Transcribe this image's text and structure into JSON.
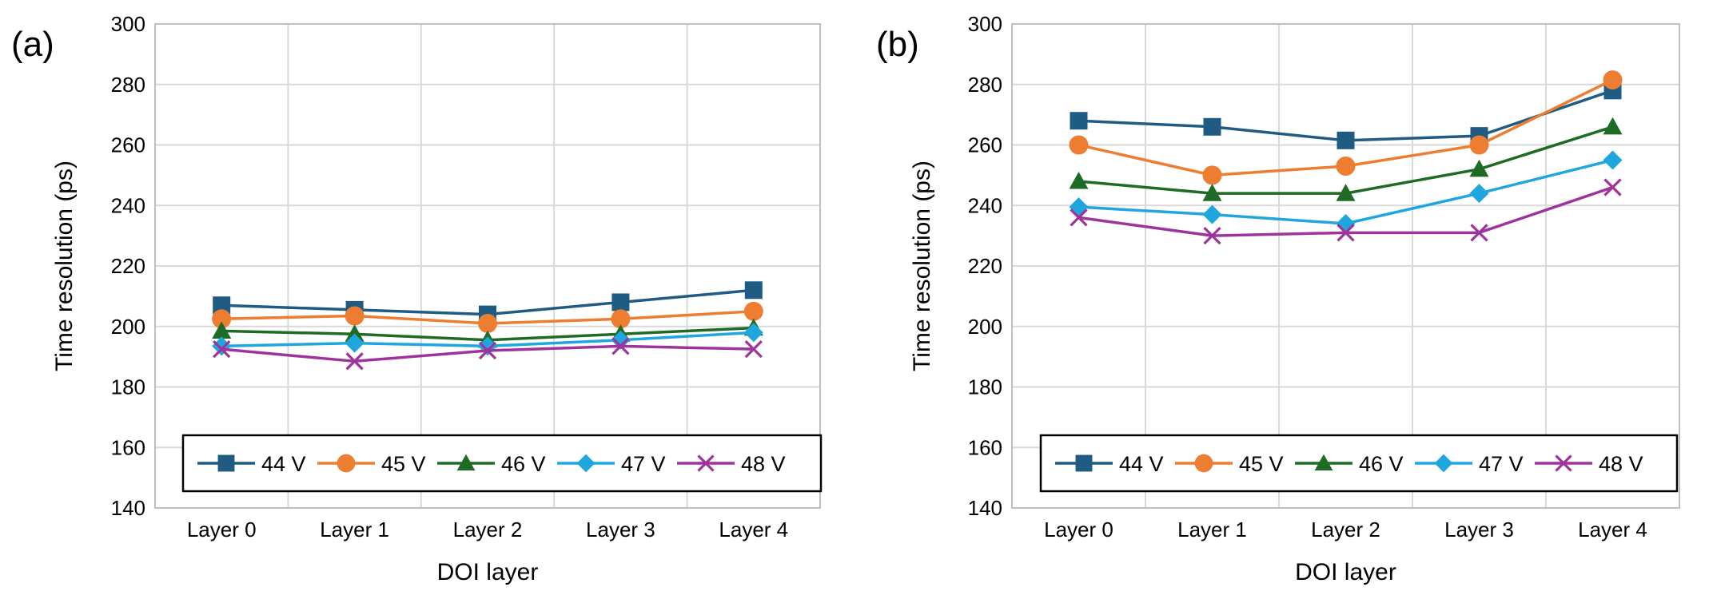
{
  "figure": {
    "colors": {
      "44 V": "#1f5b82",
      "45 V": "#ed7d31",
      "46 V": "#1e6b25",
      "47 V": "#1fa6df",
      "48 V": "#9e339b"
    },
    "markers": {
      "44 V": "square",
      "45 V": "circle",
      "46 V": "triangle",
      "47 V": "diamond",
      "48 V": "x"
    }
  },
  "chart_data": [
    {
      "type": "line",
      "panel_label": "(a)",
      "categories": [
        "Layer 0",
        "Layer 1",
        "Layer 2",
        "Layer 3",
        "Layer 4"
      ],
      "xlabel": "DOI layer",
      "ylabel": "Time resolution (ps)",
      "ylim": [
        140,
        300
      ],
      "yticks": [
        140,
        160,
        180,
        200,
        220,
        240,
        260,
        280,
        300
      ],
      "grid": true,
      "legend_position": "bottom",
      "series": [
        {
          "name": "44 V",
          "values": [
            207,
            205.5,
            204,
            208,
            212
          ]
        },
        {
          "name": "45 V",
          "values": [
            202.5,
            203.5,
            201,
            202.5,
            205
          ]
        },
        {
          "name": "46 V",
          "values": [
            198.5,
            197.5,
            195.5,
            197.5,
            199.5
          ]
        },
        {
          "name": "47 V",
          "values": [
            193.5,
            194.5,
            193.5,
            195.5,
            198
          ]
        },
        {
          "name": "48 V",
          "values": [
            192.5,
            188.5,
            192,
            193.5,
            192.5
          ]
        }
      ]
    },
    {
      "type": "line",
      "panel_label": "(b)",
      "categories": [
        "Layer 0",
        "Layer 1",
        "Layer 2",
        "Layer 3",
        "Layer 4"
      ],
      "xlabel": "DOI layer",
      "ylabel": "Time resolution (ps)",
      "ylim": [
        140,
        300
      ],
      "yticks": [
        140,
        160,
        180,
        200,
        220,
        240,
        260,
        280,
        300
      ],
      "grid": true,
      "legend_position": "bottom",
      "series": [
        {
          "name": "44 V",
          "values": [
            268,
            266,
            261.5,
            263,
            278
          ]
        },
        {
          "name": "45 V",
          "values": [
            260,
            250,
            253,
            260,
            281.5
          ]
        },
        {
          "name": "46 V",
          "values": [
            248,
            244,
            244,
            252,
            266
          ]
        },
        {
          "name": "47 V",
          "values": [
            239.5,
            237,
            234,
            244,
            255
          ]
        },
        {
          "name": "48 V",
          "values": [
            236,
            230,
            231,
            231,
            246
          ]
        }
      ]
    }
  ]
}
